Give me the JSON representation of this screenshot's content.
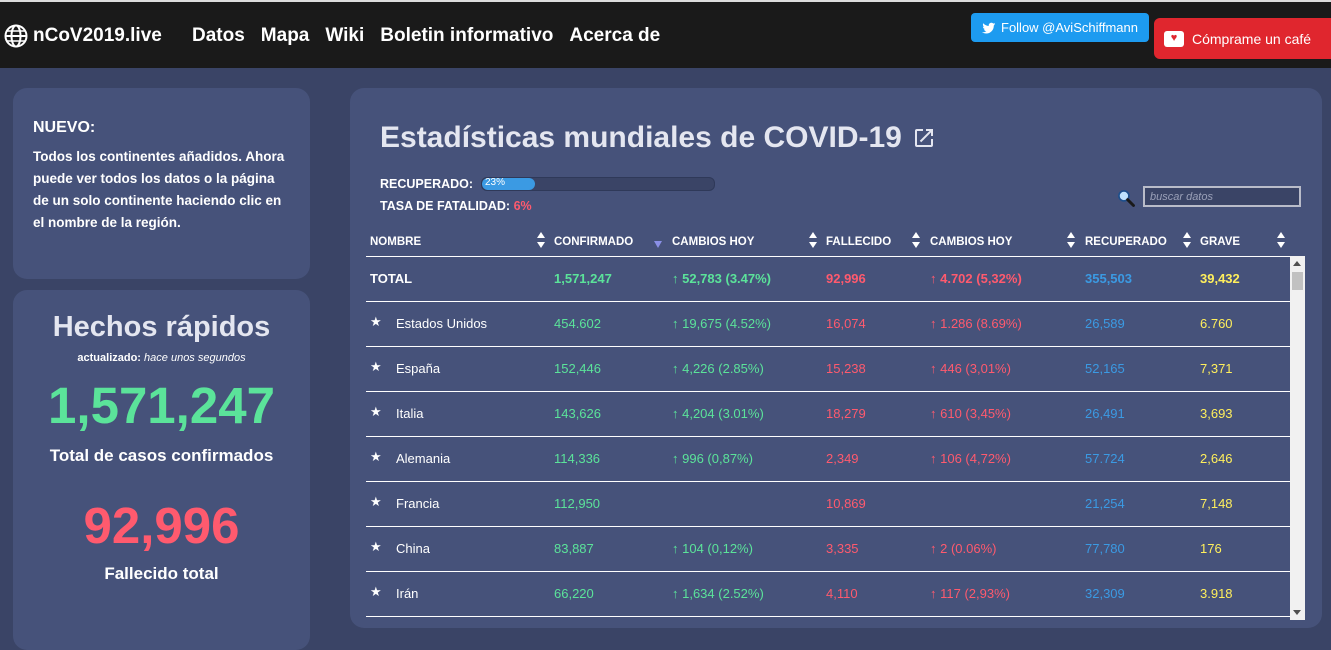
{
  "navbar": {
    "brand": "nCoV2019.live",
    "links": [
      "Datos",
      "Mapa",
      "Wiki",
      "Boletin informativo",
      "Acerca de"
    ],
    "twitter_label": "Follow @AviSchiffmann",
    "coffee_label": "Cómprame un café"
  },
  "news": {
    "title": "NUEVO:",
    "body": "Todos los continentes añadidos. Ahora puede ver todos los datos o la página de un solo continente haciendo clic en el nombre de la región."
  },
  "facts": {
    "title": "Hechos rápidos",
    "updated_prefix": "actualizado:",
    "updated_value": "hace unos segundos",
    "confirmed": "1,571,247",
    "confirmed_label": "Total de casos confirmados",
    "deaths": "92,996",
    "deaths_label": "Fallecido total"
  },
  "main": {
    "title": "Estadísticas mundiales de COVID-19",
    "recovered_label": "RECUPERADO:",
    "recovered_pct": "23%",
    "recovered_fraction": 0.23,
    "fatality_label": "TASA DE FATALIDAD:",
    "fatality_value": "6%",
    "search_placeholder": "buscar datos"
  },
  "table": {
    "headers": [
      "NOMBRE",
      "CONFIRMADO",
      "CAMBIOS HOY",
      "FALLECIDO",
      "CAMBIOS HOY",
      "RECUPERADO",
      "GRAVE"
    ],
    "total": {
      "name": "TOTAL",
      "confirmed": "1,571,247",
      "change": "↑ 52,783 (3.47%)",
      "deaths": "92,996",
      "death_change": "↑ 4.702 (5,32%)",
      "recovered": "355,503",
      "serious": "39,432"
    },
    "rows": [
      {
        "name": "Estados Unidos",
        "confirmed": "454.602",
        "change": "↑ 19,675 (4.52%)",
        "deaths": "16,074",
        "death_change": "↑ 1.286 (8.69%)",
        "recovered": "26,589",
        "serious": "6.760"
      },
      {
        "name": "España",
        "confirmed": "152,446",
        "change": "↑ 4,226 (2.85%)",
        "deaths": "15,238",
        "death_change": "↑ 446 (3,01%)",
        "recovered": "52,165",
        "serious": "7,371"
      },
      {
        "name": "Italia",
        "confirmed": "143,626",
        "change": "↑ 4,204 (3.01%)",
        "deaths": "18,279",
        "death_change": "↑ 610 (3,45%)",
        "recovered": "26,491",
        "serious": "3,693"
      },
      {
        "name": "Alemania",
        "confirmed": "114,336",
        "change": "↑ 996 (0,87%)",
        "deaths": "2,349",
        "death_change": "↑ 106 (4,72%)",
        "recovered": "57.724",
        "serious": "2,646"
      },
      {
        "name": "Francia",
        "confirmed": "112,950",
        "change": "",
        "deaths": "10,869",
        "death_change": "",
        "recovered": "21,254",
        "serious": "7,148"
      },
      {
        "name": "China",
        "confirmed": "83,887",
        "change": "↑ 104 (0,12%)",
        "deaths": "3,335",
        "death_change": "↑ 2 (0.06%)",
        "recovered": "77,780",
        "serious": "176"
      },
      {
        "name": "Irán",
        "confirmed": "66,220",
        "change": "↑ 1,634 (2.52%)",
        "deaths": "4,110",
        "death_change": "↑ 117 (2,93%)",
        "recovered": "32,309",
        "serious": "3.918"
      }
    ]
  },
  "colors": {
    "confirmed": "#5be39a",
    "deaths": "#ff5a6e",
    "recovered": "#3b9ae3",
    "serious": "#ffef5c",
    "card": "#46527a",
    "background": "#3a4466"
  }
}
